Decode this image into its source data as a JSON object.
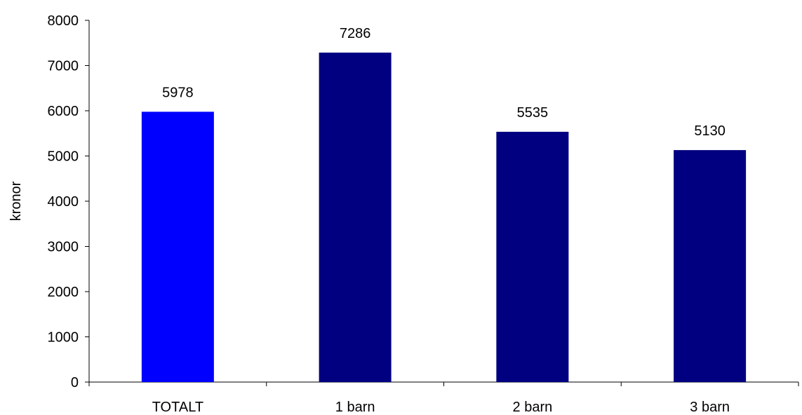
{
  "chart_data": {
    "type": "bar",
    "title": "",
    "xlabel": "",
    "ylabel": "kronor",
    "ylim": [
      0,
      8000
    ],
    "yticks": [
      0,
      1000,
      2000,
      3000,
      4000,
      5000,
      6000,
      7000,
      8000
    ],
    "grid": false,
    "legend": "none",
    "categories": [
      "TOTALT",
      "1 barn",
      "2 barn",
      "3 barn"
    ],
    "values": [
      5978,
      7286,
      5535,
      5130
    ],
    "bar_colors": [
      "#0000ff",
      "#000080",
      "#000080",
      "#000080"
    ],
    "data_labels": [
      "5978",
      "7286",
      "5535",
      "5130"
    ]
  }
}
